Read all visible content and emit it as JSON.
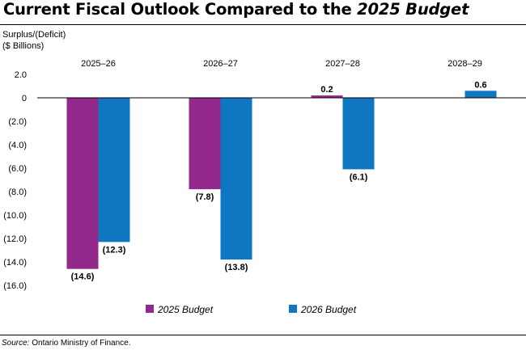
{
  "header": {
    "title_main": "Current Fiscal Outlook Compared to the ",
    "title_italic": "2025 Budget"
  },
  "footer": {
    "source_label": "Source:",
    "source_text": " Ontario Ministry of Finance."
  },
  "chart_data": {
    "type": "bar",
    "title": "Current Fiscal Outlook Compared to the 2025 Budget",
    "ylabel_line1": "Surplus/(Deficit)",
    "ylabel_line2": "($ Billions)",
    "xlabel": "",
    "categories": [
      "2025–26",
      "2026–27",
      "2027–28",
      "2028–29"
    ],
    "series": [
      {
        "name": "2025 Budget",
        "color": "#932a8b",
        "values": [
          -14.6,
          -7.8,
          0.2,
          null
        ],
        "labels": [
          "(14.6)",
          "(7.8)",
          "0.2",
          ""
        ]
      },
      {
        "name": "2026 Budget",
        "color": "#0f77c1",
        "values": [
          -12.3,
          -13.8,
          -6.1,
          0.6
        ],
        "labels": [
          "(12.3)",
          "(13.8)",
          "(6.1)",
          "0.6"
        ]
      }
    ],
    "ylim": [
      -16.0,
      2.0
    ],
    "yticks": [
      2.0,
      0,
      -2.0,
      -4.0,
      -6.0,
      -8.0,
      -10.0,
      -12.0,
      -14.0,
      -16.0
    ],
    "ytick_labels": [
      "2.0",
      "0",
      "(2.0)",
      "(4.0)",
      "(6.0)",
      "(8.0)",
      "(10.0)",
      "(12.0)",
      "(14.0)",
      "(16.0)"
    ],
    "legend_position": "bottom",
    "grid": false
  }
}
